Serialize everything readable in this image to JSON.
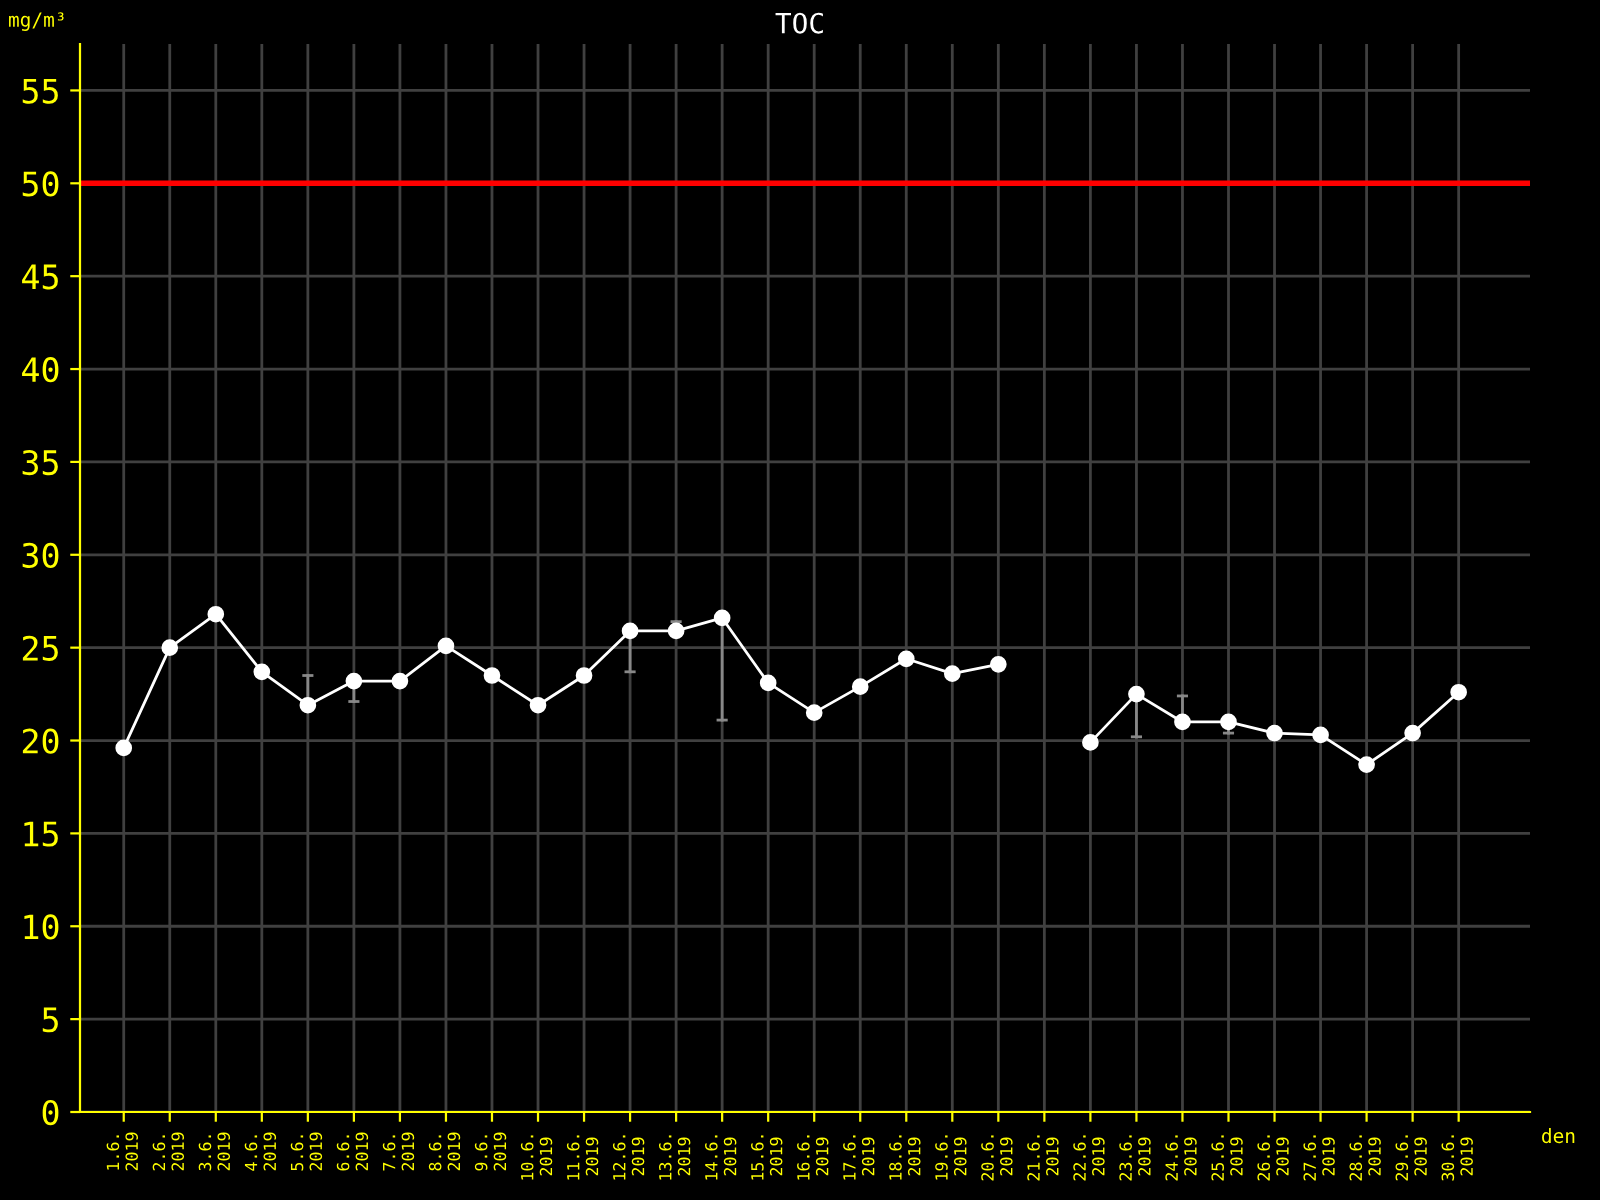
{
  "chart_data": {
    "type": "line",
    "title": "TOC",
    "ylabel": "mg/m³",
    "xlabel": "den",
    "categories": [
      "1.6.\n2019",
      "2.6.\n2019",
      "3.6.\n2019",
      "4.6.\n2019",
      "5.6.\n2019",
      "6.6.\n2019",
      "7.6.\n2019",
      "8.6.\n2019",
      "9.6.\n2019",
      "10.6.\n2019",
      "11.6.\n2019",
      "12.6.\n2019",
      "13.6.\n2019",
      "14.6.\n2019",
      "15.6.\n2019",
      "16.6.\n2019",
      "17.6.\n2019",
      "18.6.\n2019",
      "19.6.\n2019",
      "20.6.\n2019",
      "21.6.\n2019",
      "22.6.\n2019",
      "23.6.\n2019",
      "24.6.\n2019",
      "25.6.\n2019",
      "26.6.\n2019",
      "27.6.\n2019",
      "28.6.\n2019",
      "29.6.\n2019",
      "30.6.\n2019"
    ],
    "series": [
      {
        "color": "#ffffff",
        "values": [
          19.6,
          25.0,
          26.8,
          23.7,
          21.9,
          23.2,
          23.2,
          25.1,
          23.5,
          21.9,
          23.5,
          25.9,
          25.9,
          26.6,
          23.1,
          21.5,
          22.9,
          24.4,
          23.6,
          24.1,
          null,
          19.9,
          22.5,
          21.0,
          21.0,
          20.4,
          20.3,
          18.7,
          20.4,
          22.6
        ],
        "errors": [
          null,
          null,
          null,
          null,
          [
            21.9,
            23.5
          ],
          [
            22.1,
            23.2
          ],
          null,
          null,
          null,
          null,
          null,
          [
            23.7,
            25.9
          ],
          [
            25.9,
            26.4
          ],
          [
            21.1,
            26.6
          ],
          null,
          null,
          null,
          null,
          null,
          null,
          null,
          null,
          [
            20.2,
            22.5
          ],
          [
            21.0,
            22.4
          ],
          [
            20.4,
            21.0
          ],
          null,
          null,
          null,
          null,
          null
        ]
      }
    ],
    "ylim": [
      0,
      57.5
    ],
    "yticks": [
      0,
      5,
      10,
      15,
      20,
      25,
      30,
      35,
      40,
      45,
      50,
      55
    ],
    "ref_lines": [
      {
        "axis": "y",
        "value": 50,
        "color": "#ff0000"
      }
    ],
    "grid": true,
    "marker": "circle",
    "line_style": "solid"
  }
}
